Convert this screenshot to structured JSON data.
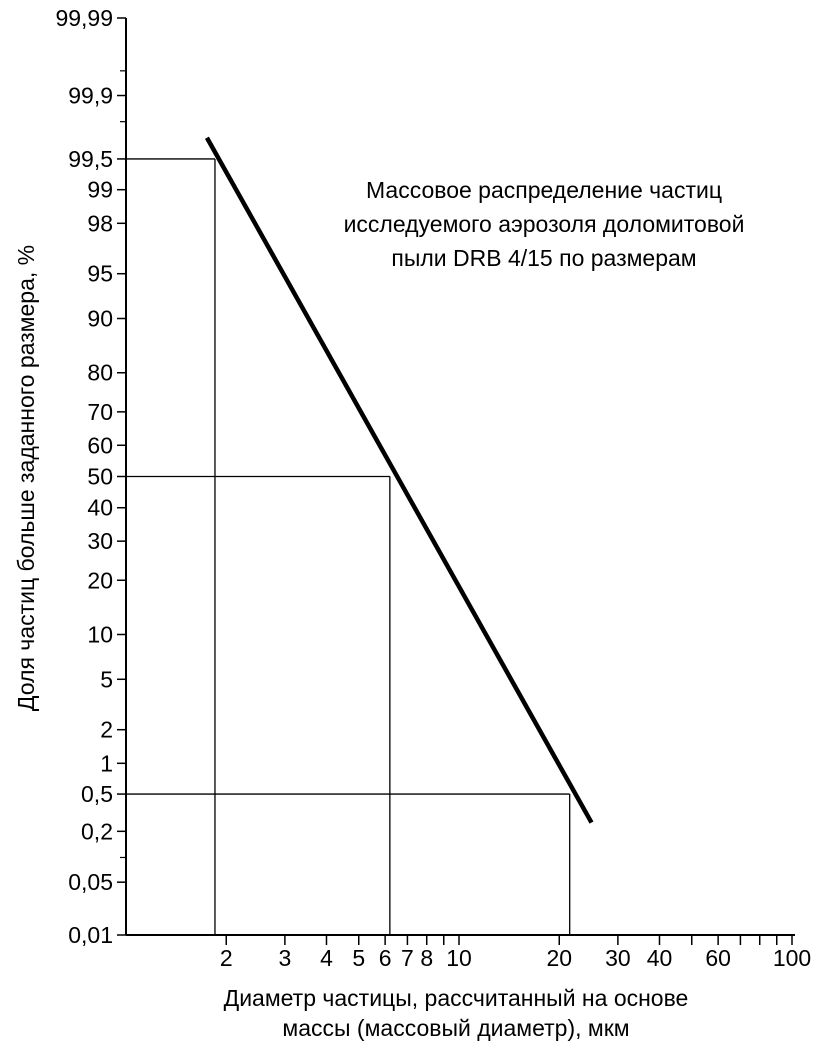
{
  "chart_data": {
    "type": "line",
    "title_lines": [
      "Массовое распределение частиц",
      "исследуемого аэрозоля доломитовой",
      "пыли DRB 4/15 по размерам"
    ],
    "ylabel": "Доля частиц больше заданного размера, %",
    "xlabel_lines": [
      "Диаметр частицы, рассчитанный на основе",
      "массы (массовый диаметр), мкм"
    ],
    "x_scale": "log",
    "y_scale": "probability",
    "xlim": [
      1,
      100
    ],
    "ylim": [
      0.01,
      99.99
    ],
    "x_ticks": [
      {
        "value": 2,
        "label": "2"
      },
      {
        "value": 3,
        "label": "3"
      },
      {
        "value": 4,
        "label": "4"
      },
      {
        "value": 5,
        "label": "5"
      },
      {
        "value": 6,
        "label": "6"
      },
      {
        "value": 7,
        "label": "7"
      },
      {
        "value": 8,
        "label": "8"
      },
      {
        "value": 10,
        "label": "10"
      },
      {
        "value": 20,
        "label": "20"
      },
      {
        "value": 30,
        "label": "30"
      },
      {
        "value": 40,
        "label": "40"
      },
      {
        "value": 60,
        "label": "60"
      },
      {
        "value": 100,
        "label": "100"
      }
    ],
    "x_minor_ticks": [
      9,
      50,
      70,
      80,
      90
    ],
    "y_ticks": [
      {
        "value": 0.01,
        "label": "0,01"
      },
      {
        "value": 0.05,
        "label": "0,05"
      },
      {
        "value": 0.2,
        "label": "0,2"
      },
      {
        "value": 0.5,
        "label": "0,5"
      },
      {
        "value": 1,
        "label": "1"
      },
      {
        "value": 2,
        "label": "2"
      },
      {
        "value": 5,
        "label": "5"
      },
      {
        "value": 10,
        "label": "10"
      },
      {
        "value": 20,
        "label": "20"
      },
      {
        "value": 30,
        "label": "30"
      },
      {
        "value": 40,
        "label": "40"
      },
      {
        "value": 50,
        "label": "50"
      },
      {
        "value": 60,
        "label": "60"
      },
      {
        "value": 70,
        "label": "70"
      },
      {
        "value": 80,
        "label": "80"
      },
      {
        "value": 90,
        "label": "90"
      },
      {
        "value": 95,
        "label": "95"
      },
      {
        "value": 98,
        "label": "98"
      },
      {
        "value": 99,
        "label": "99"
      },
      {
        "value": 99.5,
        "label": "99,5"
      },
      {
        "value": 99.9,
        "label": "99,9"
      },
      {
        "value": 99.99,
        "label": "99,99"
      }
    ],
    "y_minor_ticks": [
      0.1,
      99.8,
      99.95
    ],
    "series": [
      {
        "points": [
          {
            "x": 1.75,
            "y": 99.7
          },
          {
            "x": 25,
            "y": 0.25
          }
        ]
      }
    ],
    "reference_points": [
      {
        "x": 1.85,
        "y": 99.5
      },
      {
        "x": 6.2,
        "y": 50
      },
      {
        "x": 21.5,
        "y": 0.5
      }
    ],
    "grid": false,
    "legend": "none"
  }
}
